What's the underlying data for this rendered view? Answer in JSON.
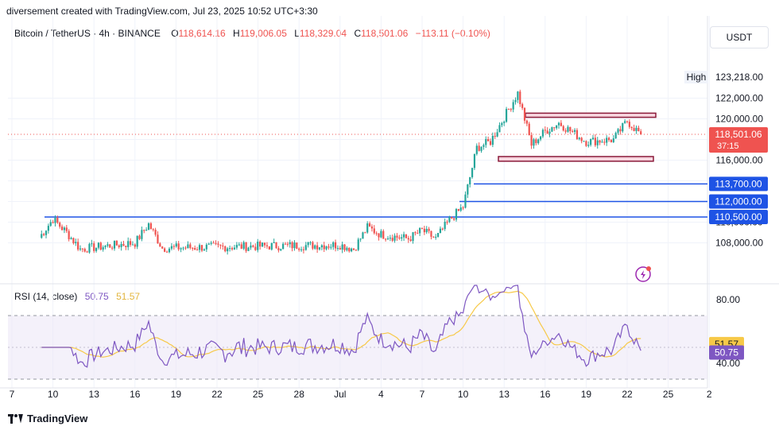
{
  "header": {
    "created_by": "diversement created with TradingView.com, Jul 23, 2025 10:52 UTC+3:30"
  },
  "legend": {
    "symbol": "Bitcoin / TetherUS · 4h · BINANCE",
    "open_label": "O",
    "open": "118,614.16",
    "high_label": "H",
    "high": "119,006.05",
    "low_label": "L",
    "low": "118,329.04",
    "close_label": "C",
    "close": "118,501.06",
    "change": "−113.11 (−0.10%)"
  },
  "currency": "USDT",
  "brand": "TradingView",
  "colors": {
    "up": "#26a69a",
    "down": "#ef5350",
    "level_line": "#1e53e5",
    "rsi": "#7e57c2",
    "rsi_ma": "#f7c948",
    "zone_fill": "#f8d7e0",
    "zone_border": "#8b1a3a"
  },
  "chart_data": [
    {
      "type": "candlestick",
      "title": "Bitcoin / TetherUS · 4h · BINANCE",
      "x_ticks": [
        "7",
        "10",
        "13",
        "16",
        "19",
        "22",
        "25",
        "28",
        "Jul",
        "4",
        "7",
        "10",
        "13",
        "16",
        "19",
        "22",
        "25",
        "2"
      ],
      "y_ticks": [
        "108,000.00",
        "110,000.00",
        "116,000.00",
        "120,000.00",
        "122,000.00"
      ],
      "ylim": [
        107000,
        124500
      ],
      "high_label": "High",
      "high_value": 123218,
      "high_value_label": "123,218.00",
      "last_price": 118501.06,
      "last_price_label": "118,501.06",
      "countdown": "37:15",
      "horizontal_levels": [
        {
          "value": 113700,
          "label": "113,700.00"
        },
        {
          "value": 112000,
          "label": "112,000.00"
        },
        {
          "value": 110500,
          "label": "110,500.00"
        }
      ],
      "range_zones": [
        {
          "name": "resistance",
          "low": 120150,
          "high": 120550
        },
        {
          "name": "support",
          "low": 115900,
          "high": 116350
        }
      ],
      "close_series_key_points": [
        {
          "x": "Jun 9",
          "close": 108500
        },
        {
          "x": "Jun 10",
          "close": 110300
        },
        {
          "x": "Jun 11",
          "close": 109000
        },
        {
          "x": "Jun 12",
          "close": 107400
        },
        {
          "x": "Jun 16",
          "close": 108000
        },
        {
          "x": "Jun 17",
          "close": 109800
        },
        {
          "x": "Jun 18",
          "close": 107500
        },
        {
          "x": "Jun 26",
          "close": 107700
        },
        {
          "x": "Jul 1",
          "close": 107800
        },
        {
          "x": "Jul 2",
          "close": 107400
        },
        {
          "x": "Jul 3",
          "close": 109500
        },
        {
          "x": "Jul 4",
          "close": 108800
        },
        {
          "x": "Jul 6",
          "close": 108400
        },
        {
          "x": "Jul 7",
          "close": 109200
        },
        {
          "x": "Jul 8",
          "close": 108400
        },
        {
          "x": "Jul 9",
          "close": 110200
        },
        {
          "x": "Jul 10",
          "close": 111500
        },
        {
          "x": "Jul 11",
          "close": 117200
        },
        {
          "x": "Jul 12",
          "close": 117800
        },
        {
          "x": "Jul 14",
          "close": 122500
        },
        {
          "x": "Jul 15",
          "close": 117500
        },
        {
          "x": "Jul 16",
          "close": 118800
        },
        {
          "x": "Jul 17",
          "close": 119600
        },
        {
          "x": "Jul 19",
          "close": 117800
        },
        {
          "x": "Jul 21",
          "close": 118000
        },
        {
          "x": "Jul 22",
          "close": 119800
        },
        {
          "x": "Jul 23",
          "close": 118501
        }
      ]
    },
    {
      "type": "line",
      "title": "RSI (14, close)",
      "rsi_value": 50.75,
      "rsi_value_label": "50.75",
      "rsi_ma_value": 51.57,
      "rsi_ma_value_label": "51.57",
      "y_ticks": [
        "80.00",
        "40.00"
      ],
      "bands": [
        70,
        30
      ],
      "ylim": [
        25,
        88
      ]
    }
  ]
}
